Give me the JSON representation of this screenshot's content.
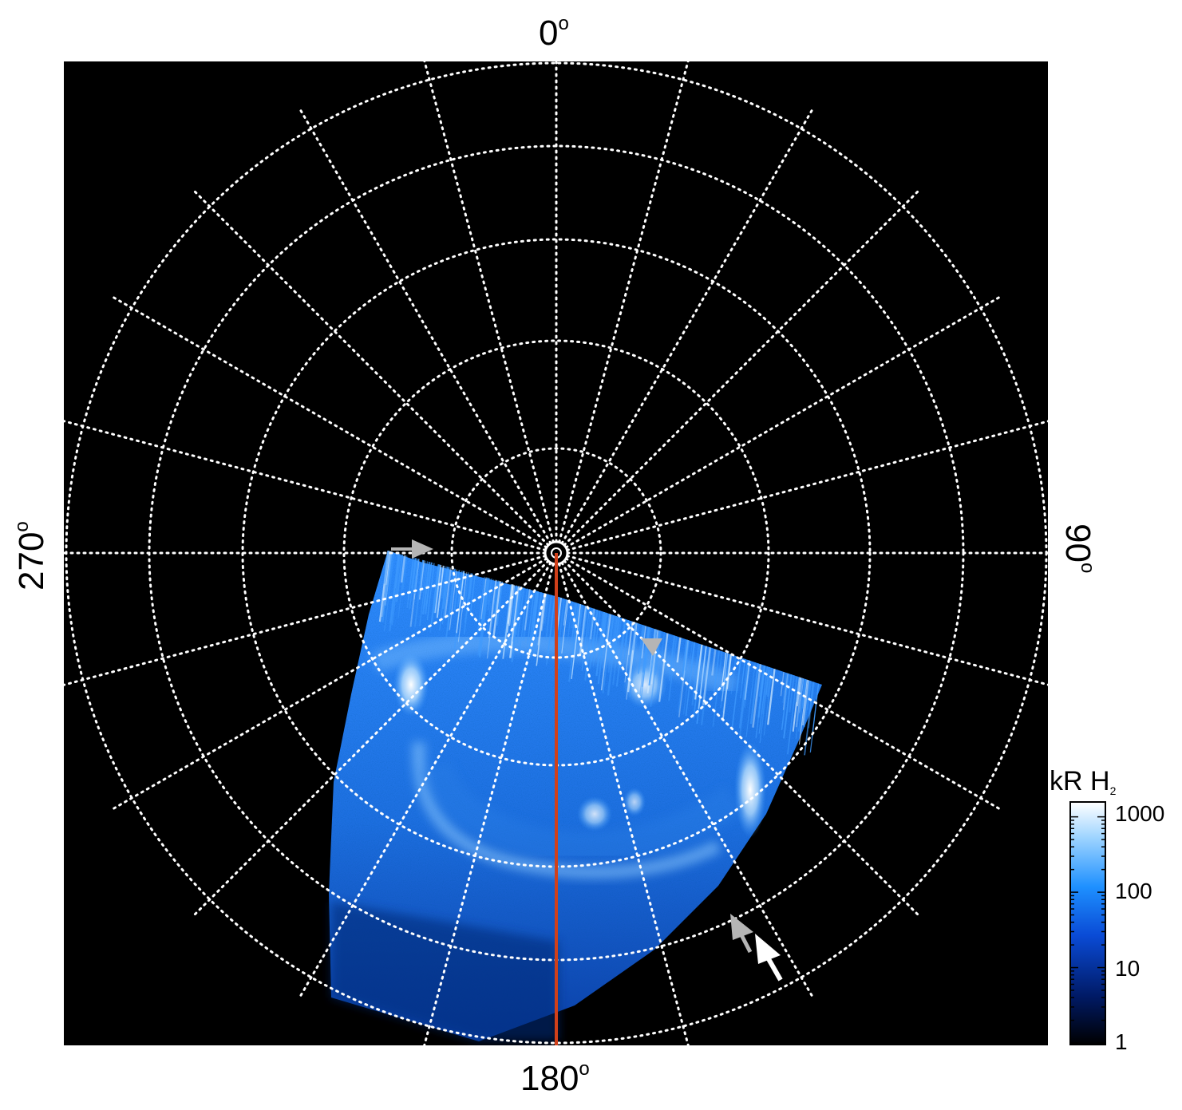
{
  "figure": {
    "labels": {
      "top": "0",
      "bottom": "180",
      "left": "270",
      "right": "90",
      "degree_symbol": "o"
    },
    "colorbar": {
      "unit": "kR H",
      "subscript": "2",
      "ticks": [
        "1000",
        "100",
        "10",
        "1"
      ],
      "scale": "log",
      "colors": [
        "#000000",
        "#001a66",
        "#0a4bd6",
        "#1e90ff",
        "#9cd3ff",
        "#ffffff"
      ]
    },
    "colors": {
      "background": "#000000",
      "grid": "#ffffff",
      "meridian_line": "#d0401a",
      "aurora_main": "#1e7fe8",
      "aurora_bright": "#dff2ff",
      "arrow_gray": "#b5b5b5",
      "arrow_white": "#ffffff"
    },
    "grid": {
      "style": "dotted",
      "meridian_step_deg": 15
    },
    "markers": [
      {
        "name": "gray-arrow-left",
        "color": "gray"
      },
      {
        "name": "gray-arrow-right",
        "color": "gray"
      },
      {
        "name": "gray-arrow-bottom",
        "color": "gray"
      },
      {
        "name": "white-arrow-bottom",
        "color": "white"
      }
    ]
  }
}
